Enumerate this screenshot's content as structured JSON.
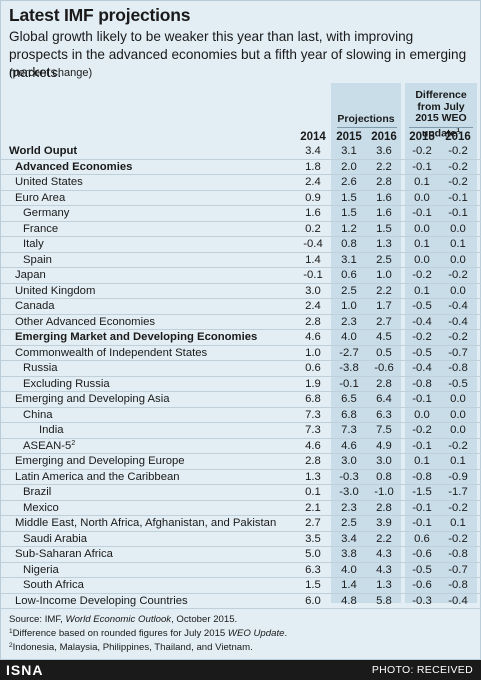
{
  "title": "Latest IMF projections",
  "subtitle": "Global growth likely to be weaker this year than last, with improving prospects in the advanced economies but a fifth year of slowing in emerging markets.",
  "unit_note": "(percent change)",
  "headers": {
    "projections": "Projections",
    "difference": "Difference from July 2015 WEO update",
    "difference_sup": "1",
    "columns": [
      "2014",
      "2015",
      "2016",
      "2015",
      "2016"
    ]
  },
  "rows": [
    {
      "label": "World Ouput",
      "level": 0,
      "bold": true,
      "v": [
        "3.4",
        "3.1",
        "3.6",
        "-0.2",
        "-0.2"
      ]
    },
    {
      "label": "Advanced Economies",
      "level": 1,
      "bold": true,
      "v": [
        "1.8",
        "2.0",
        "2.2",
        "-0.1",
        "-0.2"
      ]
    },
    {
      "label": "United States",
      "level": 1,
      "bold": false,
      "v": [
        "2.4",
        "2.6",
        "2.8",
        "0.1",
        "-0.2"
      ]
    },
    {
      "label": "Euro Area",
      "level": 1,
      "bold": false,
      "v": [
        "0.9",
        "1.5",
        "1.6",
        "0.0",
        "-0.1"
      ]
    },
    {
      "label": "Germany",
      "level": 2,
      "bold": false,
      "v": [
        "1.6",
        "1.5",
        "1.6",
        "-0.1",
        "-0.1"
      ]
    },
    {
      "label": "France",
      "level": 2,
      "bold": false,
      "v": [
        "0.2",
        "1.2",
        "1.5",
        "0.0",
        "0.0"
      ]
    },
    {
      "label": "Italy",
      "level": 2,
      "bold": false,
      "v": [
        "-0.4",
        "0.8",
        "1.3",
        "0.1",
        "0.1"
      ]
    },
    {
      "label": "Spain",
      "level": 2,
      "bold": false,
      "v": [
        "1.4",
        "3.1",
        "2.5",
        "0.0",
        "0.0"
      ]
    },
    {
      "label": "Japan",
      "level": 1,
      "bold": false,
      "v": [
        "-0.1",
        "0.6",
        "1.0",
        "-0.2",
        "-0.2"
      ]
    },
    {
      "label": "United Kingdom",
      "level": 1,
      "bold": false,
      "v": [
        "3.0",
        "2.5",
        "2.2",
        "0.1",
        "0.0"
      ]
    },
    {
      "label": "Canada",
      "level": 1,
      "bold": false,
      "v": [
        "2.4",
        "1.0",
        "1.7",
        "-0.5",
        "-0.4"
      ]
    },
    {
      "label": "Other Advanced Economies",
      "level": 1,
      "bold": false,
      "v": [
        "2.8",
        "2.3",
        "2.7",
        "-0.4",
        "-0.4"
      ]
    },
    {
      "label": "Emerging Market and Developing Economies",
      "level": 1,
      "bold": true,
      "v": [
        "4.6",
        "4.0",
        "4.5",
        "-0.2",
        "-0.2"
      ]
    },
    {
      "label": "Commonwealth of Independent States",
      "level": 1,
      "bold": false,
      "v": [
        "1.0",
        "-2.7",
        "0.5",
        "-0.5",
        "-0.7"
      ]
    },
    {
      "label": "Russia",
      "level": 2,
      "bold": false,
      "v": [
        "0.6",
        "-3.8",
        "-0.6",
        "-0.4",
        "-0.8"
      ]
    },
    {
      "label": "Excluding Russia",
      "level": 2,
      "bold": false,
      "v": [
        "1.9",
        "-0.1",
        "2.8",
        "-0.8",
        "-0.5"
      ]
    },
    {
      "label": "Emerging and Developing Asia",
      "level": 1,
      "bold": false,
      "v": [
        "6.8",
        "6.5",
        "6.4",
        "-0.1",
        "0.0"
      ]
    },
    {
      "label": "China",
      "level": 2,
      "bold": false,
      "v": [
        "7.3",
        "6.8",
        "6.3",
        "0.0",
        "0.0"
      ]
    },
    {
      "label": "India",
      "level": 3,
      "bold": false,
      "v": [
        "7.3",
        "7.3",
        "7.5",
        "-0.2",
        "0.0"
      ]
    },
    {
      "label": "ASEAN-5",
      "sup": "2",
      "level": 2,
      "bold": false,
      "v": [
        "4.6",
        "4.6",
        "4.9",
        "-0.1",
        "-0.2"
      ]
    },
    {
      "label": "Emerging and Developing Europe",
      "level": 1,
      "bold": false,
      "v": [
        "2.8",
        "3.0",
        "3.0",
        "0.1",
        "0.1"
      ]
    },
    {
      "label": "Latin America and the Caribbean",
      "level": 1,
      "bold": false,
      "v": [
        "1.3",
        "-0.3",
        "0.8",
        "-0.8",
        "-0.9"
      ]
    },
    {
      "label": "Brazil",
      "level": 2,
      "bold": false,
      "v": [
        "0.1",
        "-3.0",
        "-1.0",
        "-1.5",
        "-1.7"
      ]
    },
    {
      "label": "Mexico",
      "level": 2,
      "bold": false,
      "v": [
        "2.1",
        "2.3",
        "2.8",
        "-0.1",
        "-0.2"
      ]
    },
    {
      "label": "Middle East, North Africa, Afghanistan, and Pakistan",
      "level": 1,
      "bold": false,
      "v": [
        "2.7",
        "2.5",
        "3.9",
        "-0.1",
        "0.1"
      ]
    },
    {
      "label": "Saudi Arabia",
      "level": 2,
      "bold": false,
      "v": [
        "3.5",
        "3.4",
        "2.2",
        "0.6",
        "-0.2"
      ]
    },
    {
      "label": "Sub-Saharan Africa",
      "level": 1,
      "bold": false,
      "v": [
        "5.0",
        "3.8",
        "4.3",
        "-0.6",
        "-0.8"
      ]
    },
    {
      "label": "Nigeria",
      "level": 2,
      "bold": false,
      "v": [
        "6.3",
        "4.0",
        "4.3",
        "-0.5",
        "-0.7"
      ]
    },
    {
      "label": "South Africa",
      "level": 2,
      "bold": false,
      "v": [
        "1.5",
        "1.4",
        "1.3",
        "-0.6",
        "-0.8"
      ]
    },
    {
      "label": "Low-Income Developing Countries",
      "level": 1,
      "bold": false,
      "v": [
        "6.0",
        "4.8",
        "5.8",
        "-0.3",
        "-0.4"
      ]
    }
  ],
  "notes": {
    "source_prefix": "Source: IMF, ",
    "source_pub": "World Economic Outlook",
    "source_suffix": ", October 2015.",
    "note1_sup": "1",
    "note1_text": "Difference based on rounded figures for July 2015 ",
    "note1_pub": "WEO Update",
    "note1_end": ".",
    "note2_sup": "2",
    "note2_text": "Indonesia, Malaysia, Philippines, Thailand, and Vietnam."
  },
  "footer": {
    "brand": "ISNA",
    "credit": "PHOTO: RECEIVED"
  },
  "colors": {
    "panel": "#e3eef4",
    "shaded_columns": "#c9dde9",
    "footer_bar": "#1a1a1a"
  }
}
